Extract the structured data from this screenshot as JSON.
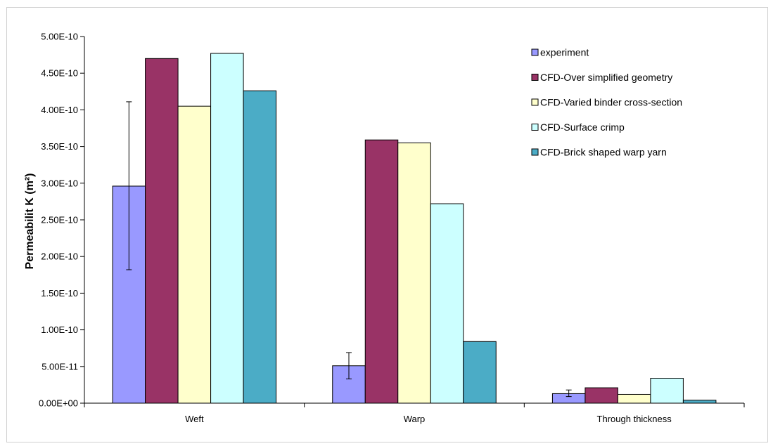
{
  "chart_data": {
    "type": "bar",
    "title": "",
    "xlabel": "",
    "ylabel": "Permeabilit K (m²)",
    "ylim": [
      0,
      5e-10
    ],
    "yticks": [
      "0.00E+00",
      "5.00E-11",
      "1.00E-10",
      "1.50E-10",
      "2.00E-10",
      "2.50E-10",
      "3.00E-10",
      "3.50E-10",
      "4.00E-10",
      "4.50E-10",
      "5.00E-10"
    ],
    "categories": [
      "Weft",
      "Warp",
      "Through thickness"
    ],
    "legend_position": "top-right",
    "grid": false,
    "series": [
      {
        "name": "experiment",
        "color": "#9999ff",
        "values": [
          2.96e-10,
          5.1e-11,
          1.3e-11
        ],
        "error_low": [
          1.82e-10,
          3.3e-11,
          9e-12
        ],
        "error_high": [
          4.11e-10,
          6.9e-11,
          1.8e-11
        ]
      },
      {
        "name": "CFD-Over simplified geometry",
        "color": "#993366",
        "values": [
          4.7e-10,
          3.59e-10,
          2.1e-11
        ]
      },
      {
        "name": "CFD-Varied binder cross-section",
        "color": "#ffffcc",
        "values": [
          4.05e-10,
          3.55e-10,
          1.2e-11
        ]
      },
      {
        "name": "CFD-Surface crimp",
        "color": "#ccffff",
        "values": [
          4.77e-10,
          2.72e-10,
          3.4e-11
        ]
      },
      {
        "name": "CFD-Brick shaped warp yarn",
        "color": "#4bacc6",
        "values": [
          4.26e-10,
          8.4e-11,
          4e-12
        ]
      }
    ]
  }
}
